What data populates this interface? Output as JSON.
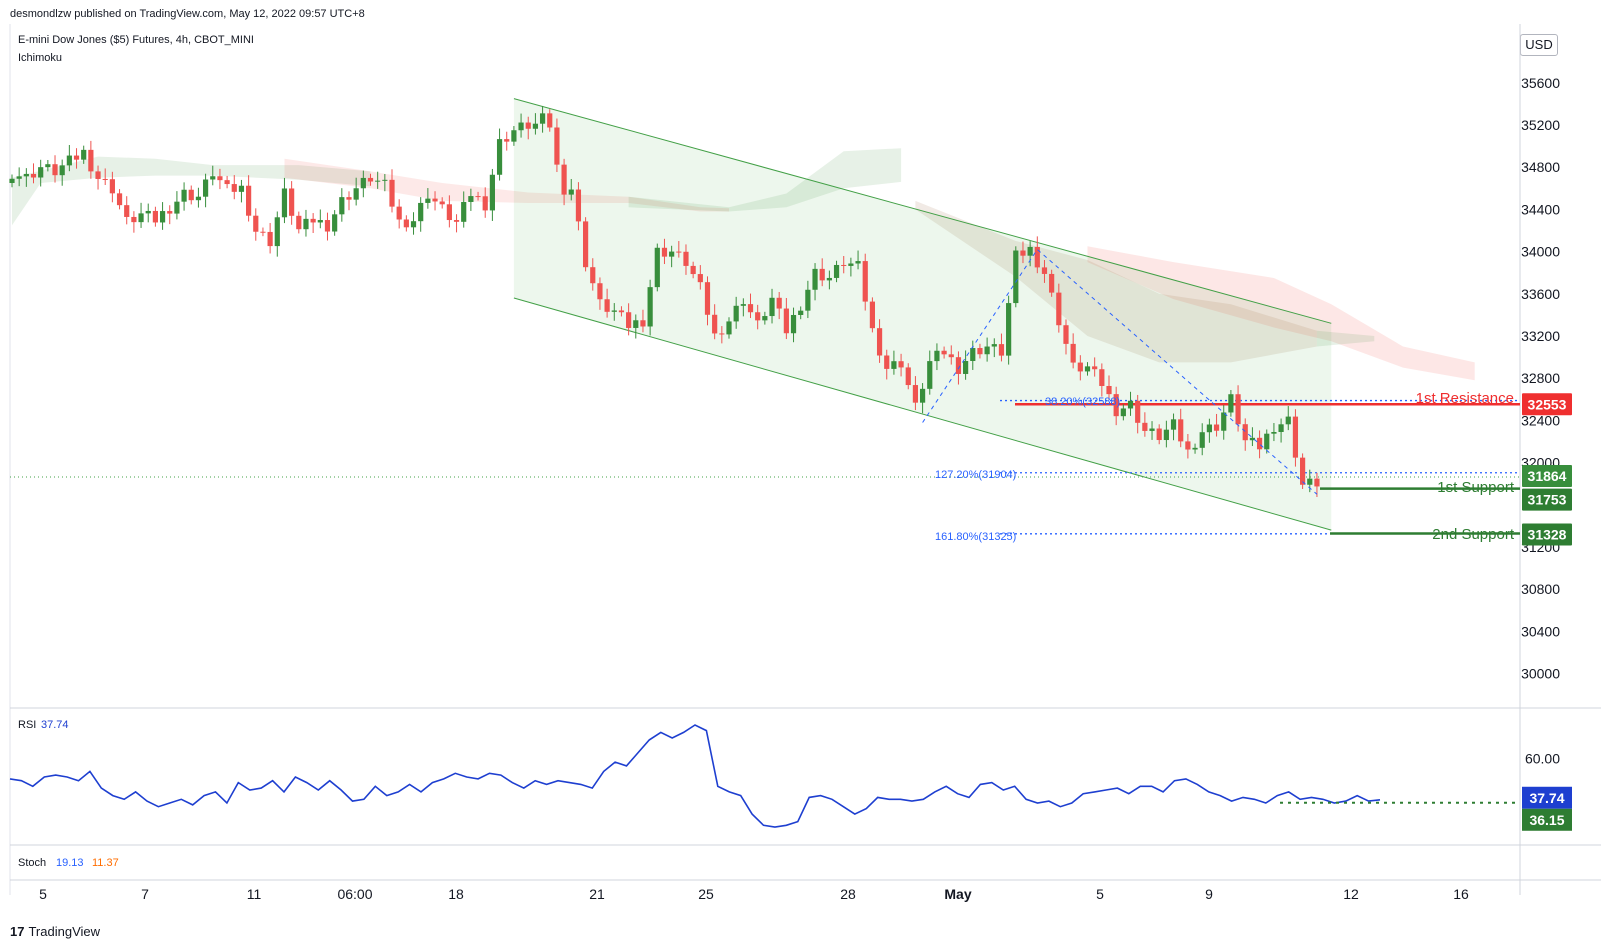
{
  "header": {
    "published": "desmondlzw published on TradingView.com, May 12, 2022 09:57 UTC+8",
    "symbol": "E-mini Dow Jones ($5) Futures, 4h, CBOT_MINI",
    "indicator": "Ichimoku"
  },
  "currency": "USD",
  "brand": {
    "logo": "17",
    "name": "TradingView"
  },
  "colors": {
    "up": "#388e3c",
    "down": "#ef5350",
    "resistance": "#ef2f2f",
    "support": "#2e7d32",
    "rsi_line": "#1e3fd0",
    "stoch_k": "#2962ff",
    "stoch_d": "#ff6d00",
    "fib": "#2962ff"
  },
  "chart_data": [
    {
      "type": "candlestick",
      "title": "E-mini Dow Jones ($5) Futures, 4h, CBOT_MINI",
      "y_axis_ticks": [
        35600,
        35200,
        34800,
        34400,
        34000,
        33600,
        33200,
        32800,
        32400,
        32000,
        31200,
        30800,
        30400,
        30000
      ],
      "ylim": [
        29750,
        36100
      ],
      "x_axis_ticks": [
        "5",
        "7",
        "11",
        "06:00",
        "18",
        "21",
        "25",
        "28",
        "May",
        "5",
        "9",
        "12",
        "16"
      ],
      "price_path": [
        [
          0,
          34750
        ],
        [
          2,
          34700
        ],
        [
          4,
          34800
        ],
        [
          6,
          34760
        ],
        [
          8,
          34850
        ],
        [
          10,
          34940
        ],
        [
          12,
          34700
        ],
        [
          14,
          34600
        ],
        [
          16,
          34280
        ],
        [
          18,
          34350
        ],
        [
          20,
          34300
        ],
        [
          22,
          34420
        ],
        [
          24,
          34550
        ],
        [
          26,
          34520
        ],
        [
          28,
          34750
        ],
        [
          30,
          34580
        ],
        [
          32,
          34600
        ],
        [
          34,
          34200
        ],
        [
          36,
          34100
        ],
        [
          38,
          34550
        ],
        [
          40,
          34200
        ],
        [
          42,
          34300
        ],
        [
          44,
          34250
        ],
        [
          46,
          34480
        ],
        [
          48,
          34600
        ],
        [
          50,
          34700
        ],
        [
          52,
          34620
        ],
        [
          54,
          34280
        ],
        [
          56,
          34300
        ],
        [
          58,
          34550
        ],
        [
          60,
          34400
        ],
        [
          62,
          34270
        ],
        [
          64,
          34550
        ],
        [
          66,
          34450
        ],
        [
          68,
          35030
        ],
        [
          70,
          35150
        ],
        [
          72,
          35200
        ],
        [
          73,
          35200
        ],
        [
          74,
          35250
        ],
        [
          75,
          35200
        ],
        [
          76,
          34800
        ],
        [
          77,
          34600
        ],
        [
          78,
          34600
        ],
        [
          80,
          33900
        ],
        [
          82,
          33500
        ],
        [
          84,
          33430
        ],
        [
          86,
          33300
        ],
        [
          88,
          33350
        ],
        [
          90,
          34000
        ],
        [
          92,
          34000
        ],
        [
          94,
          33900
        ],
        [
          96,
          33650
        ],
        [
          98,
          33200
        ],
        [
          100,
          33350
        ],
        [
          102,
          33550
        ],
        [
          104,
          33300
        ],
        [
          106,
          33550
        ],
        [
          108,
          33250
        ],
        [
          110,
          33500
        ],
        [
          112,
          33800
        ],
        [
          114,
          33750
        ],
        [
          116,
          33900
        ],
        [
          118,
          33850
        ],
        [
          120,
          33250
        ],
        [
          122,
          32900
        ],
        [
          124,
          32950
        ],
        [
          126,
          32520
        ],
        [
          128,
          32950
        ],
        [
          130,
          33050
        ],
        [
          132,
          32900
        ],
        [
          134,
          33050
        ],
        [
          136,
          33100
        ],
        [
          138,
          33050
        ],
        [
          140,
          33950
        ],
        [
          142,
          34020
        ],
        [
          144,
          33800
        ],
        [
          146,
          33350
        ],
        [
          148,
          32900
        ],
        [
          150,
          32900
        ],
        [
          152,
          32750
        ],
        [
          154,
          32500
        ],
        [
          156,
          32550
        ],
        [
          158,
          32300
        ],
        [
          160,
          32250
        ],
        [
          162,
          32350
        ],
        [
          164,
          32100
        ],
        [
          166,
          32300
        ],
        [
          168,
          32350
        ],
        [
          170,
          32600
        ],
        [
          172,
          32200
        ],
        [
          174,
          32150
        ],
        [
          176,
          32350
        ],
        [
          178,
          32400
        ],
        [
          180,
          31790
        ],
        [
          182,
          31810
        ]
      ],
      "annotations": {
        "fib_382": "38.20%(32588)",
        "fib_1272": "127.20%(31904)",
        "fib_1618": "161.80%(31325)",
        "resistance_label": "1st Resistance",
        "support1_label": "1st Support",
        "support2_label": "2nd Support"
      },
      "levels": {
        "resistance": 32553,
        "support1": 31753,
        "support2": 31328,
        "fib_382": 32588,
        "fib_1272": 31904,
        "fib_1618": 31325
      },
      "price_tags": {
        "resistance": "32553",
        "current": "31864",
        "support1": "31753",
        "support2": "31328"
      },
      "channel": {
        "upper": [
          [
            70,
            35450
          ],
          [
            184,
            33320
          ]
        ],
        "lower": [
          [
            70,
            33560
          ],
          [
            184,
            31360
          ]
        ]
      },
      "ichimoku": "cloud shaded"
    },
    {
      "type": "line",
      "title": "RSI",
      "series": [
        {
          "name": "RSI",
          "value_label": "37.74"
        }
      ],
      "y_axis_ticks": [
        "60.00"
      ],
      "ylim": [
        15,
        85
      ],
      "values": [
        49,
        48,
        45,
        50,
        51,
        50,
        48,
        53,
        44,
        40,
        38,
        42,
        37,
        34,
        36,
        38,
        35,
        40,
        42,
        36,
        47,
        43,
        44,
        48,
        42,
        50,
        47,
        43,
        48,
        43,
        37,
        38,
        45,
        40,
        42,
        46,
        42,
        47,
        49,
        52,
        50,
        49,
        52,
        51,
        47,
        44,
        48,
        46,
        48,
        47,
        46,
        44,
        53,
        58,
        56,
        63,
        70,
        74,
        71,
        74,
        78,
        75,
        45,
        42,
        40,
        30,
        24,
        23,
        24,
        26,
        39,
        40,
        38,
        34,
        30,
        33,
        39,
        38,
        38,
        37,
        38,
        42,
        45,
        41,
        39,
        46,
        47,
        43,
        45,
        38,
        36,
        37,
        34,
        36,
        41,
        42,
        43,
        44,
        41,
        45,
        45,
        42,
        48,
        49,
        46,
        42,
        40,
        37,
        39,
        38,
        36,
        40,
        42,
        38,
        39,
        38,
        36,
        37,
        40,
        37,
        37.74
      ],
      "price_tags": {
        "rsi": "37.74",
        "level": "36.15"
      }
    },
    {
      "type": "line",
      "title": "Stoch",
      "series": [
        {
          "name": "Stoch %K",
          "value_label": "19.13"
        },
        {
          "name": "Stoch %D",
          "value_label": "11.37"
        }
      ]
    }
  ]
}
